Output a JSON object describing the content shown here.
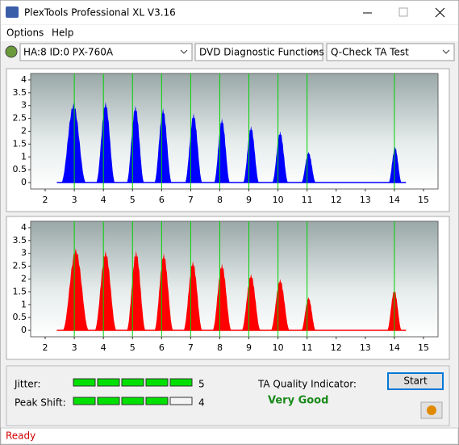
{
  "window": {
    "title": "PlexTools Professional XL V3.16"
  },
  "menu": [
    "Options",
    "Help"
  ],
  "toolbar": {
    "drive": "HA:8 ID:0  PX-760A",
    "function": "DVD Diagnostic Functions",
    "test": "Q-Check TA Test"
  },
  "charts": [
    {
      "type": "histogram",
      "color": "#0000ff",
      "xlim": [
        1.5,
        15.5
      ],
      "ylim": [
        -0.25,
        4.25
      ],
      "xticks": [
        2,
        3,
        4,
        5,
        6,
        7,
        8,
        9,
        10,
        11,
        12,
        13,
        14,
        15
      ],
      "yticks": [
        0,
        0.5,
        1,
        1.5,
        2,
        2.5,
        3,
        3.5,
        4
      ],
      "markers": [
        3,
        4,
        5,
        6,
        7,
        8,
        9,
        10,
        11,
        14
      ],
      "marker_color": "#00d000",
      "peaks": [
        {
          "from": 2.55,
          "to": 3.4,
          "height": 3.1
        },
        {
          "from": 3.75,
          "to": 4.4,
          "height": 3.15
        },
        {
          "from": 4.8,
          "to": 5.4,
          "height": 3.0
        },
        {
          "from": 5.75,
          "to": 6.35,
          "height": 2.9
        },
        {
          "from": 6.8,
          "to": 7.4,
          "height": 2.7
        },
        {
          "from": 7.8,
          "to": 8.35,
          "height": 2.5
        },
        {
          "from": 8.8,
          "to": 9.35,
          "height": 2.2
        },
        {
          "from": 9.8,
          "to": 10.35,
          "height": 2.0
        },
        {
          "from": 10.8,
          "to": 11.3,
          "height": 1.2
        },
        {
          "from": 13.8,
          "to": 14.25,
          "height": 1.4
        }
      ]
    },
    {
      "type": "histogram",
      "color": "#ff0000",
      "xlim": [
        1.5,
        15.5
      ],
      "ylim": [
        -0.25,
        4.25
      ],
      "xticks": [
        2,
        3,
        4,
        5,
        6,
        7,
        8,
        9,
        10,
        11,
        12,
        13,
        14,
        15
      ],
      "yticks": [
        0,
        0.5,
        1,
        1.5,
        2,
        2.5,
        3,
        3.5,
        4
      ],
      "markers": [
        3,
        4,
        5,
        6,
        7,
        8,
        9,
        10,
        11,
        14
      ],
      "marker_color": "#00d000",
      "peaks": [
        {
          "from": 2.6,
          "to": 3.5,
          "height": 3.2
        },
        {
          "from": 3.7,
          "to": 4.45,
          "height": 3.1
        },
        {
          "from": 4.8,
          "to": 5.45,
          "height": 3.1
        },
        {
          "from": 5.75,
          "to": 6.4,
          "height": 3.0
        },
        {
          "from": 6.75,
          "to": 7.4,
          "height": 2.7
        },
        {
          "from": 7.75,
          "to": 8.4,
          "height": 2.6
        },
        {
          "from": 8.75,
          "to": 9.4,
          "height": 2.2
        },
        {
          "from": 9.75,
          "to": 10.4,
          "height": 2.0
        },
        {
          "from": 10.8,
          "to": 11.3,
          "height": 1.3
        },
        {
          "from": 13.75,
          "to": 14.25,
          "height": 1.6
        }
      ]
    }
  ],
  "panel": {
    "jitter": {
      "label": "Jitter:",
      "value": 5
    },
    "peak_shift": {
      "label": "Peak Shift:",
      "value": 4
    },
    "quality_label": "TA Quality Indicator:",
    "quality": "Very Good",
    "start": "Start"
  },
  "status": "Ready"
}
